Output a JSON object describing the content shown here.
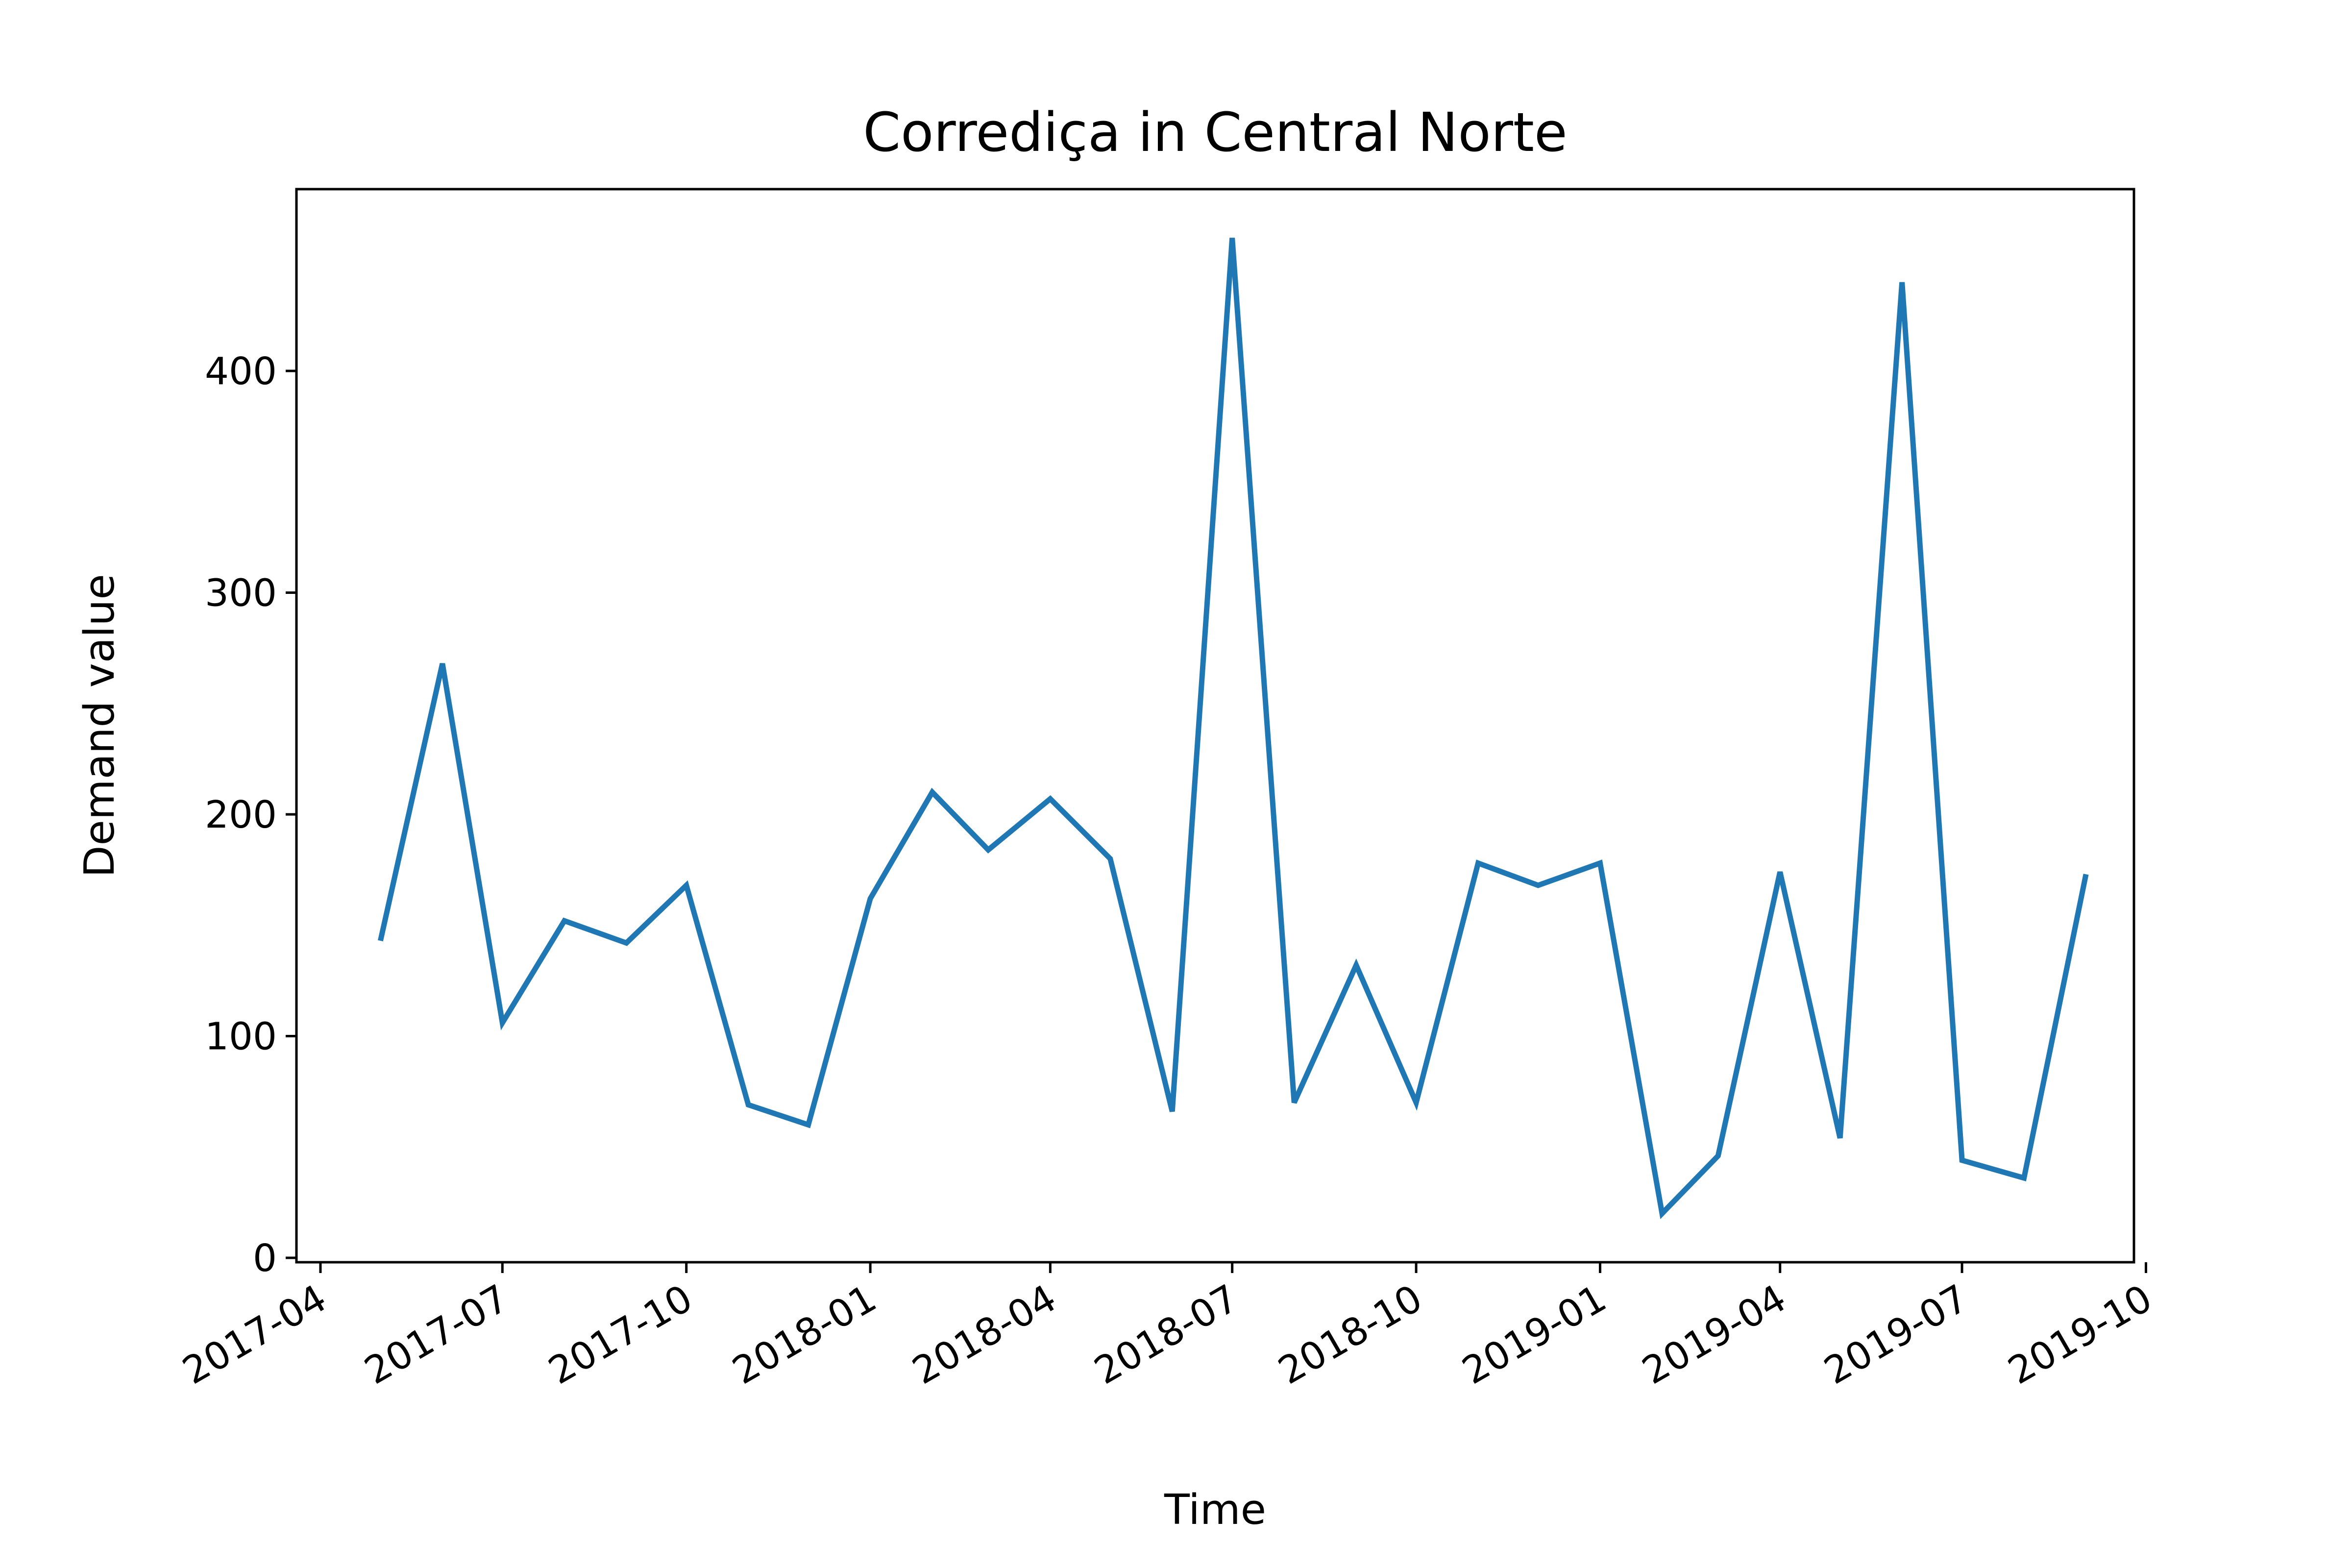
{
  "chart_data": {
    "type": "line",
    "title": "Corrediça in Central Norte",
    "xlabel": "Time",
    "ylabel": "Demand value",
    "ylim": [
      -2,
      482
    ],
    "xlim": [
      "2017-03-20",
      "2019-09-25"
    ],
    "grid": false,
    "legend": "none",
    "y_ticks": [
      0,
      100,
      200,
      300,
      400
    ],
    "x_ticks": [
      "2017-04",
      "2017-07",
      "2017-10",
      "2018-01",
      "2018-04",
      "2018-07",
      "2018-10",
      "2019-01",
      "2019-04",
      "2019-07",
      "2019-10"
    ],
    "series": [
      {
        "name": "Demand",
        "color": "#1f77b4",
        "x": [
          "2017-05",
          "2017-06",
          "2017-07",
          "2017-08",
          "2017-09",
          "2017-10",
          "2017-11",
          "2017-12",
          "2018-01",
          "2018-02",
          "2018-03",
          "2018-04",
          "2018-05",
          "2018-06",
          "2018-07",
          "2018-08",
          "2018-09",
          "2018-10",
          "2018-11",
          "2018-12",
          "2019-01",
          "2019-02",
          "2019-03",
          "2019-04",
          "2019-05",
          "2019-06",
          "2019-07",
          "2019-08",
          "2019-09"
        ],
        "values": [
          143,
          268,
          106,
          152,
          142,
          168,
          69,
          60,
          162,
          210,
          184,
          207,
          180,
          66,
          460,
          70,
          132,
          70,
          178,
          168,
          178,
          20,
          46,
          174,
          54,
          440,
          44,
          36,
          173
        ]
      }
    ]
  }
}
